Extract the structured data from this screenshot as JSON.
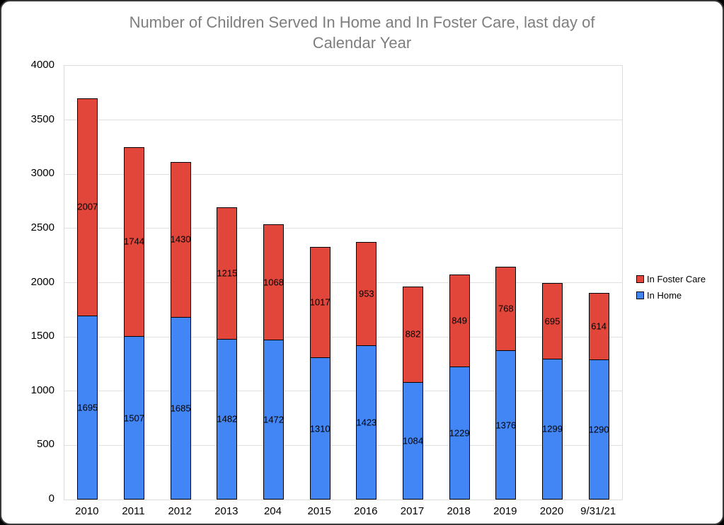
{
  "title": {
    "line1": "Number of Children Served In Home and In Foster Care, last day of",
    "line2": "Calendar Year"
  },
  "legend": {
    "items": [
      {
        "label": "In Foster Care",
        "color": "#e2453a"
      },
      {
        "label": "In Home",
        "color": "#4285f4"
      }
    ]
  },
  "colors": {
    "in_home": "#4285f4",
    "in_foster_care": "#e2453a",
    "bar_border": "#000000",
    "gridline": "#e0e0e0",
    "title_text": "#7e7e7e"
  },
  "chart_data": {
    "type": "bar",
    "stacked": true,
    "title": "Number of Children Served In Home and In Foster Care, last day of Calendar Year",
    "categories": [
      "2010",
      "2011",
      "2012",
      "2013",
      "204",
      "2015",
      "2016",
      "2017",
      "2018",
      "2019",
      "2020",
      "9/31/21"
    ],
    "series": [
      {
        "name": "In Home",
        "color": "#4285f4",
        "values": [
          1695,
          1507,
          1685,
          1482,
          1472,
          1310,
          1423,
          1084,
          1229,
          1376,
          1299,
          1290
        ]
      },
      {
        "name": "In Foster Care",
        "color": "#e2453a",
        "values": [
          2007,
          1744,
          1430,
          1215,
          1068,
          1017,
          953,
          882,
          849,
          768,
          695,
          614
        ]
      }
    ],
    "xlabel": "",
    "ylabel": "",
    "ylim": [
      0,
      4000
    ],
    "yticks": [
      0,
      500,
      1000,
      1500,
      2000,
      2500,
      3000,
      3500,
      4000
    ],
    "grid": true,
    "data_labels": true,
    "legend_position": "right"
  }
}
